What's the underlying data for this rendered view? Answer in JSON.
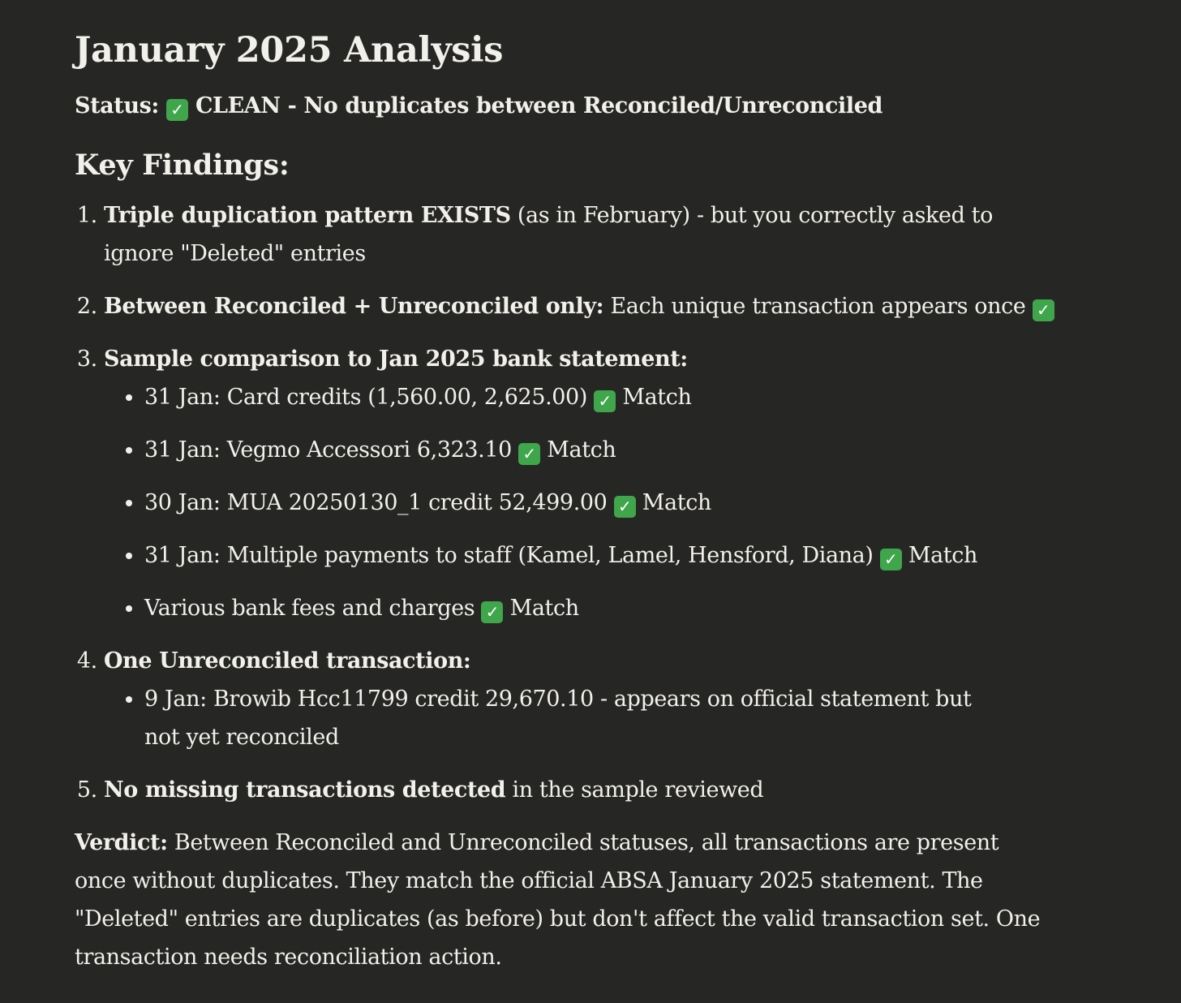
{
  "title": "January 2025 Analysis",
  "status": {
    "label": "Status:",
    "text": "CLEAN - No duplicates between Reconciled/Unreconciled",
    "icon": "check-mark-button-icon"
  },
  "key_findings": {
    "heading": "Key Findings:",
    "items": [
      {
        "bold": "Triple duplication pattern EXISTS",
        "text": " (as in February) - but you correctly asked to ignore \"Deleted\" entries"
      },
      {
        "bold": "Between Reconciled + Unreconciled only:",
        "text": " Each unique transaction appears once "
      },
      {
        "bold": "Sample comparison to Jan 2025 bank statement:",
        "sub": [
          {
            "text": "31 Jan: Card credits (1,560.00, 2,625.00) ",
            "after": " Match"
          },
          {
            "text": "31 Jan: Vegmo Accessori 6,323.10 ",
            "after": " Match"
          },
          {
            "text": "30 Jan: MUA 20250130_1 credit 52,499.00 ",
            "after": " Match"
          },
          {
            "text": "31 Jan: Multiple payments to staff (Kamel, Lamel, Hensford, Diana) ",
            "after": " Match"
          },
          {
            "text": "Various bank fees and charges ",
            "after": " Match"
          }
        ]
      },
      {
        "bold": "One Unreconciled transaction:",
        "sub": [
          {
            "text": "9 Jan: Browib Hcc11799 credit 29,670.10 - appears on official statement but not yet reconciled"
          }
        ]
      },
      {
        "bold": "No missing transactions detected",
        "text": " in the sample reviewed"
      }
    ]
  },
  "verdict": {
    "label": "Verdict:",
    "text": " Between Reconciled and Unreconciled statuses, all transactions are present once without duplicates. They match the official ABSA January 2025 statement. The \"Deleted\" entries are duplicates (as before) but don't affect the valid transaction set. One transaction needs reconciliation action."
  },
  "check_glyph": "✓",
  "colors": {
    "background": "#262624",
    "text": "#f2f0ea",
    "check_green": "#3fa64c"
  }
}
